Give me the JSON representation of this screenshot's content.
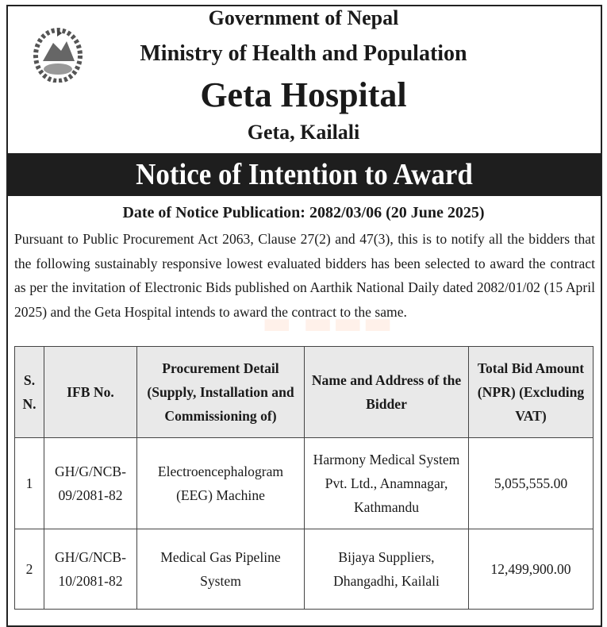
{
  "header": {
    "line1": "Government of Nepal",
    "line2": "Ministry of Health and Population",
    "line3": "Geta Hospital",
    "line4": "Geta, Kailali"
  },
  "title": "Notice of Intention to Award",
  "date": "Date of Notice Publication: 2082/03/06 (20 June 2025)",
  "body": "Pursuant to Public Procurement Act 2063, Clause 27(2) and 47(3), this is to notify all the bidders that the following sustainably responsive lowest evaluated bidders has been selected to award the contract as per the invitation of Electronic Bids published on Aarthik National Daily dated 2082/01/02 (15 April 2025) and the Geta Hospital intends to award the contract to the same.",
  "table": {
    "headers": [
      "S. N.",
      "IFB No.",
      "Procurement Detail (Supply, Installation and Commissioning of)",
      "Name and Address of the Bidder",
      "Total Bid Amount (NPR) (Excluding VAT)"
    ],
    "rows": [
      [
        "1",
        "GH/G/NCB-09/2081-82",
        "Electroencephalogram (EEG) Machine",
        "Harmony Medical System Pvt. Ltd., Anamnagar, Kathmandu",
        "5,055,555.00"
      ],
      [
        "2",
        "GH/G/NCB-10/2081-82",
        "Medical Gas Pipeline System",
        "Bijaya Suppliers, Dhangadhi, Kailali",
        "12,499,900.00"
      ]
    ]
  }
}
